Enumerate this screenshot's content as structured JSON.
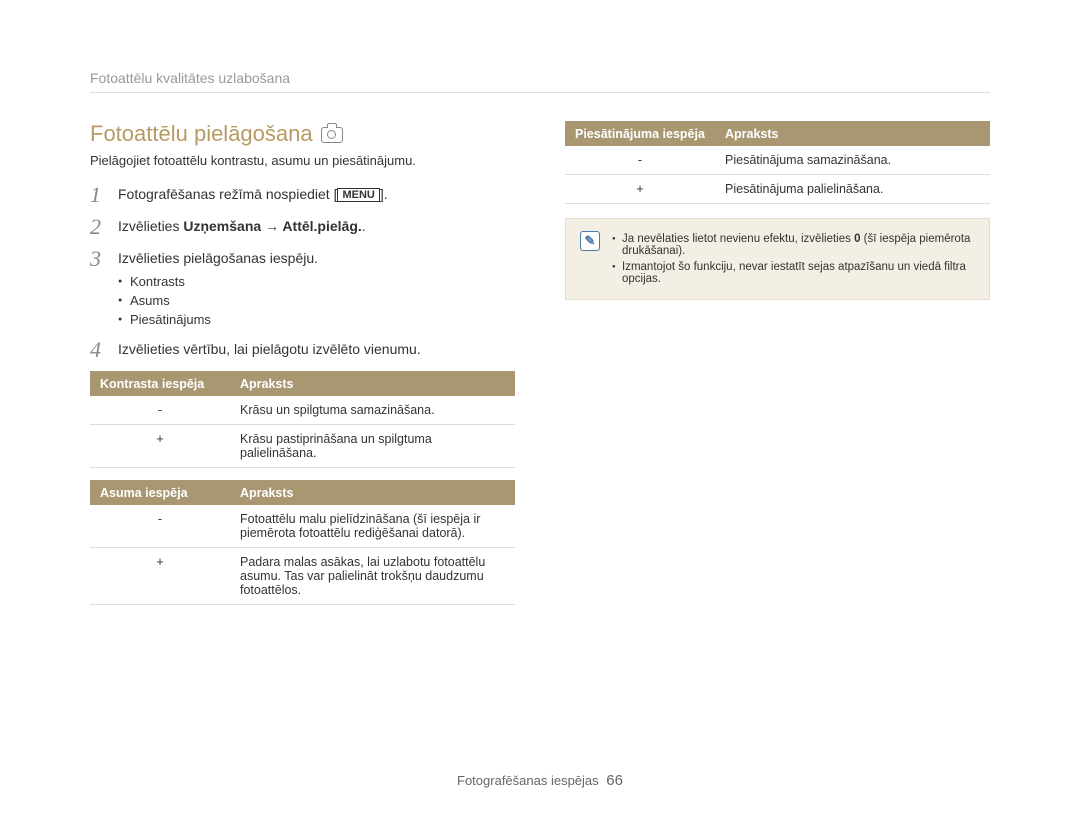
{
  "breadcrumb": "Fotoattēlu kvalitātes uzlabošana",
  "section_title": "Fotoattēlu pielāgošana",
  "intro": "Pielāgojiet fotoattēlu kontrastu, asumu un piesātinājumu.",
  "steps": {
    "s1_pre": "Fotografēšanas režīmā nospiediet [",
    "s1_key": "MENU",
    "s1_post": "].",
    "s2_pre": "Izvēlieties ",
    "s2_bold": "Uzņemšana → Attēl.pielāg.",
    "s2_post": ".",
    "s3": "Izvēlieties pielāgošanas iespēju.",
    "s3_items": {
      "a": "Kontrasts",
      "b": "Asums",
      "c": "Piesātinājums"
    },
    "s4": "Izvēlieties vērtību, lai pielāgotu izvēlēto vienumu."
  },
  "table_contrast": {
    "h1": "Kontrasta iespēja",
    "h2": "Apraksts",
    "r1c1": "-",
    "r1c2": "Krāsu un spilgtuma samazināšana.",
    "r2c1": "+",
    "r2c2": "Krāsu pastiprināšana un spilgtuma palielināšana."
  },
  "table_sharp": {
    "h1": "Asuma iespēja",
    "h2": "Apraksts",
    "r1c1": "-",
    "r1c2": "Fotoattēlu malu pielīdzināšana (šī iespēja ir piemērota fotoattēlu rediģēšanai datorā).",
    "r2c1": "+",
    "r2c2": "Padara malas asākas, lai uzlabotu fotoattēlu asumu. Tas var palielināt trokšņu daudzumu fotoattēlos."
  },
  "table_sat": {
    "h1": "Piesātinājuma iespēja",
    "h2": "Apraksts",
    "r1c1": "-",
    "r1c2": "Piesātinājuma samazināšana.",
    "r2c1": "+",
    "r2c2": "Piesātinājuma palielināšana."
  },
  "notes": {
    "n1_a": "Ja nevēlaties lietot nevienu efektu, izvēlieties ",
    "n1_b": "0",
    "n1_c": " (šī iespēja piemērota drukāšanai).",
    "n2": "Izmantojot šo funkciju, nevar iestatīt sejas atpazīšanu un viedā filtra opcijas."
  },
  "footer_label": "Fotografēšanas iespējas",
  "footer_page": "66"
}
